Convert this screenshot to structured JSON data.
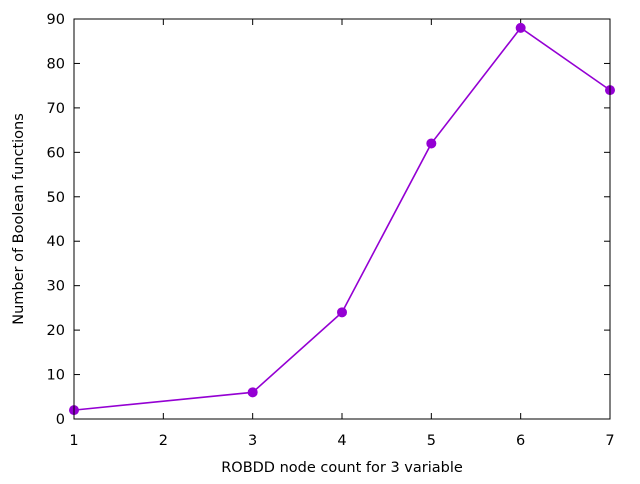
{
  "chart_data": {
    "type": "line",
    "title": "",
    "xlabel": "ROBDD node count for 3 variable",
    "ylabel": "Number of Boolean functions",
    "xlim": [
      1,
      7
    ],
    "ylim": [
      0,
      90
    ],
    "x_ticks": [
      1,
      2,
      3,
      4,
      5,
      6,
      7
    ],
    "y_ticks": [
      0,
      10,
      20,
      30,
      40,
      50,
      60,
      70,
      80,
      90
    ],
    "grid": false,
    "legend": "none",
    "series": [
      {
        "color": "#9400d3",
        "x": [
          1,
          3,
          4,
          5,
          6,
          7
        ],
        "y": [
          2,
          6,
          24,
          62,
          88,
          74
        ]
      }
    ]
  }
}
